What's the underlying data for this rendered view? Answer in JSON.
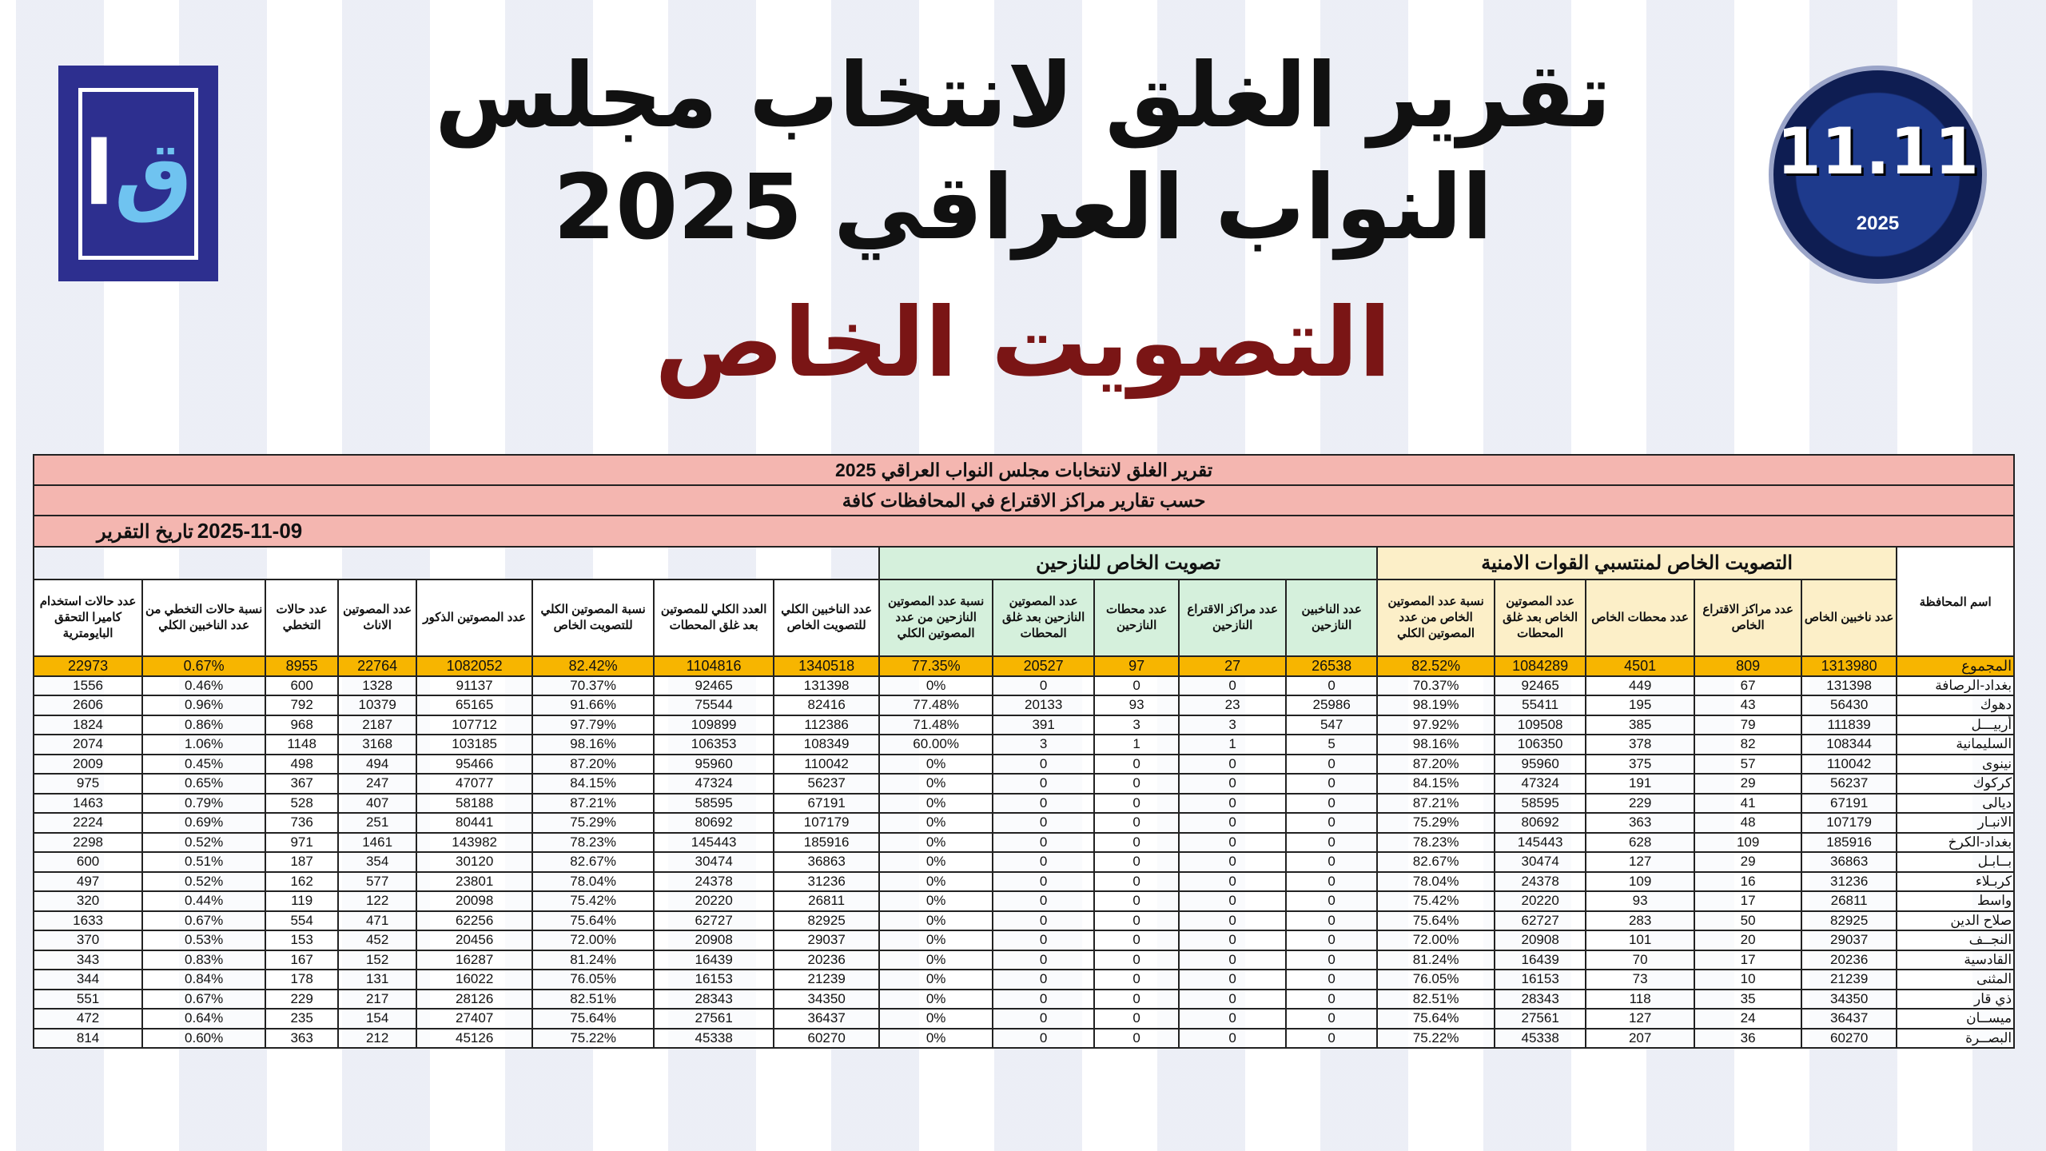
{
  "header": {
    "line1": "تقرير الغلق لانتخاب مجلس",
    "line2": "النواب العراقي 2025",
    "subtitle": "التصويت الخاص",
    "logo_left": "IHEC",
    "logo_right": {
      "number": "11.11",
      "year": "2025"
    }
  },
  "table": {
    "title": "تقرير الغلق لانتخابات مجلس النواب العراقي 2025",
    "subtitle": "حسب تقارير مراكز الاقتراع في المحافظات كافة",
    "date_label": "تاريخ التقرير",
    "date": "2025-11-09",
    "group_security": "التصويت الخاص لمنتسبي القوات الامنية",
    "group_displaced": "تصويت الخاص للنازحين",
    "columns": [
      "اسم المحافظة",
      "عدد ناخبين الخاص",
      "عدد مراكز الاقتراع الخاص",
      "عدد محطات الخاص",
      "عدد المصوتين الخاص بعد غلق المحطات",
      "نسبة عدد المصوتين الخاص من عدد المصوتين الكلي",
      "عدد الناخبين النازحين",
      "عدد مراكز الاقتراع النازحين",
      "عدد محطات النازحين",
      "عدد المصوتين النازحين بعد غلق المحطات",
      "نسبة عدد المصوتين النازحين من عدد المصوتين الكلي",
      "عدد الناخبين الكلي للتصويت الخاص",
      "العدد الكلي للمصوتين بعد غلق المحطات",
      "نسبة المصوتين الكلي للتصويت الخاص",
      "عدد المصوتين الذكور",
      "عدد المصوتين الاناث",
      "عدد حالات التخطي",
      "نسبة حالات التخطي من عدد الناخبين الكلي",
      "عدد حالات استخدام كاميرا التحقق البايومترية"
    ],
    "total": [
      "المجموع",
      "1313980",
      "809",
      "4501",
      "1084289",
      "82.52%",
      "26538",
      "27",
      "97",
      "20527",
      "77.35%",
      "1340518",
      "1104816",
      "82.42%",
      "1082052",
      "22764",
      "8955",
      "0.67%",
      "22973"
    ],
    "rows": [
      [
        "بغداد-الرصافة",
        "131398",
        "67",
        "449",
        "92465",
        "70.37%",
        "0",
        "0",
        "0",
        "0",
        "0%",
        "131398",
        "92465",
        "70.37%",
        "91137",
        "1328",
        "600",
        "0.46%",
        "1556"
      ],
      [
        "دهوك",
        "56430",
        "43",
        "195",
        "55411",
        "98.19%",
        "25986",
        "23",
        "93",
        "20133",
        "77.48%",
        "82416",
        "75544",
        "91.66%",
        "65165",
        "10379",
        "792",
        "0.96%",
        "2606"
      ],
      [
        "أربيـــل",
        "111839",
        "79",
        "385",
        "109508",
        "97.92%",
        "547",
        "3",
        "3",
        "391",
        "71.48%",
        "112386",
        "109899",
        "97.79%",
        "107712",
        "2187",
        "968",
        "0.86%",
        "1824"
      ],
      [
        "السليمانية",
        "108344",
        "82",
        "378",
        "106350",
        "98.16%",
        "5",
        "1",
        "1",
        "3",
        "60.00%",
        "108349",
        "106353",
        "98.16%",
        "103185",
        "3168",
        "1148",
        "1.06%",
        "2074"
      ],
      [
        "نينوى",
        "110042",
        "57",
        "375",
        "95960",
        "87.20%",
        "0",
        "0",
        "0",
        "0",
        "0%",
        "110042",
        "95960",
        "87.20%",
        "95466",
        "494",
        "498",
        "0.45%",
        "2009"
      ],
      [
        "كركوك",
        "56237",
        "29",
        "191",
        "47324",
        "84.15%",
        "0",
        "0",
        "0",
        "0",
        "0%",
        "56237",
        "47324",
        "84.15%",
        "47077",
        "247",
        "367",
        "0.65%",
        "975"
      ],
      [
        "ديالى",
        "67191",
        "41",
        "229",
        "58595",
        "87.21%",
        "0",
        "0",
        "0",
        "0",
        "0%",
        "67191",
        "58595",
        "87.21%",
        "58188",
        "407",
        "528",
        "0.79%",
        "1463"
      ],
      [
        "الانبـار",
        "107179",
        "48",
        "363",
        "80692",
        "75.29%",
        "0",
        "0",
        "0",
        "0",
        "0%",
        "107179",
        "80692",
        "75.29%",
        "80441",
        "251",
        "736",
        "0.69%",
        "2224"
      ],
      [
        "بغداد-الكرخ",
        "185916",
        "109",
        "628",
        "145443",
        "78.23%",
        "0",
        "0",
        "0",
        "0",
        "0%",
        "185916",
        "145443",
        "78.23%",
        "143982",
        "1461",
        "971",
        "0.52%",
        "2298"
      ],
      [
        "بــابـل",
        "36863",
        "29",
        "127",
        "30474",
        "82.67%",
        "0",
        "0",
        "0",
        "0",
        "0%",
        "36863",
        "30474",
        "82.67%",
        "30120",
        "354",
        "187",
        "0.51%",
        "600"
      ],
      [
        "كربـلاء",
        "31236",
        "16",
        "109",
        "24378",
        "78.04%",
        "0",
        "0",
        "0",
        "0",
        "0%",
        "31236",
        "24378",
        "78.04%",
        "23801",
        "577",
        "162",
        "0.52%",
        "497"
      ],
      [
        "واسط",
        "26811",
        "17",
        "93",
        "20220",
        "75.42%",
        "0",
        "0",
        "0",
        "0",
        "0%",
        "26811",
        "20220",
        "75.42%",
        "20098",
        "122",
        "119",
        "0.44%",
        "320"
      ],
      [
        "صلاح الدين",
        "82925",
        "50",
        "283",
        "62727",
        "75.64%",
        "0",
        "0",
        "0",
        "0",
        "0%",
        "82925",
        "62727",
        "75.64%",
        "62256",
        "471",
        "554",
        "0.67%",
        "1633"
      ],
      [
        "النجــف",
        "29037",
        "20",
        "101",
        "20908",
        "72.00%",
        "0",
        "0",
        "0",
        "0",
        "0%",
        "29037",
        "20908",
        "72.00%",
        "20456",
        "452",
        "153",
        "0.53%",
        "370"
      ],
      [
        "القادسية",
        "20236",
        "17",
        "70",
        "16439",
        "81.24%",
        "0",
        "0",
        "0",
        "0",
        "0%",
        "20236",
        "16439",
        "81.24%",
        "16287",
        "152",
        "167",
        "0.83%",
        "343"
      ],
      [
        "المثنى",
        "21239",
        "10",
        "73",
        "16153",
        "76.05%",
        "0",
        "0",
        "0",
        "0",
        "0%",
        "21239",
        "16153",
        "76.05%",
        "16022",
        "131",
        "178",
        "0.84%",
        "344"
      ],
      [
        "ذي قار",
        "34350",
        "35",
        "118",
        "28343",
        "82.51%",
        "0",
        "0",
        "0",
        "0",
        "0%",
        "34350",
        "28343",
        "82.51%",
        "28126",
        "217",
        "229",
        "0.67%",
        "551"
      ],
      [
        "ميســان",
        "36437",
        "24",
        "127",
        "27561",
        "75.64%",
        "0",
        "0",
        "0",
        "0",
        "0%",
        "36437",
        "27561",
        "75.64%",
        "27407",
        "154",
        "235",
        "0.64%",
        "472"
      ],
      [
        "البصــرة",
        "60270",
        "36",
        "207",
        "45338",
        "75.22%",
        "0",
        "0",
        "0",
        "0",
        "0%",
        "60270",
        "45338",
        "75.22%",
        "45126",
        "212",
        "363",
        "0.60%",
        "814"
      ]
    ]
  },
  "colors": {
    "title_band": "#f4b6b0",
    "total_row": "#f7b500",
    "security_group": "#fcefc8",
    "displaced_group": "#d5f0dc",
    "subtitle_text": "#7a1515"
  }
}
